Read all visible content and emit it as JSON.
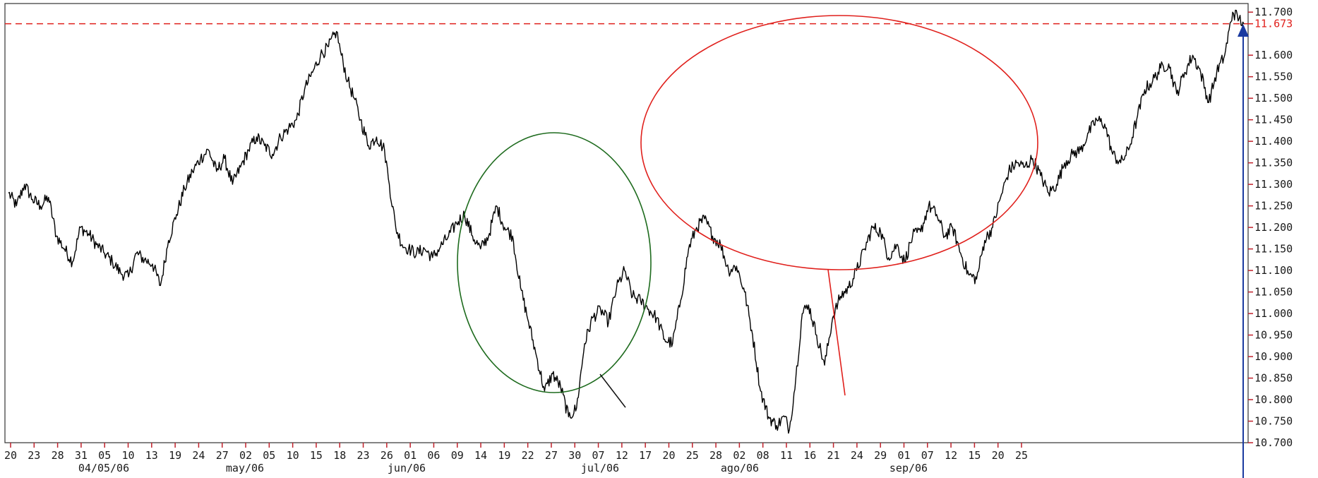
{
  "chart_data": {
    "type": "line",
    "title": "",
    "xlabel": "",
    "ylabel": "",
    "ylim": [
      10.7,
      11.72
    ],
    "y_ticks": [
      "11.700",
      "11.600",
      "11.550",
      "11.500",
      "11.450",
      "11.400",
      "11.350",
      "11.300",
      "11.250",
      "11.200",
      "11.150",
      "11.100",
      "11.050",
      "11.000",
      "10.950",
      "10.900",
      "10.850",
      "10.800",
      "10.750",
      "10.700"
    ],
    "reference_line": {
      "value": 11.673,
      "label": "11.673",
      "color": "#e0201c",
      "style": "dashed"
    },
    "day_ticks": [
      "20",
      "23",
      "28",
      "31",
      "05",
      "10",
      "13",
      "19",
      "24",
      "27",
      "02",
      "05",
      "10",
      "15",
      "18",
      "23",
      "26",
      "01",
      "06",
      "09",
      "14",
      "19",
      "22",
      "27",
      "30",
      "07",
      "12",
      "17",
      "20",
      "25",
      "28",
      "02",
      "08",
      "11",
      "16",
      "21",
      "24",
      "29",
      "01",
      "07",
      "12",
      "15",
      "20",
      "25"
    ],
    "month_labels": [
      "04/05/06",
      "may/06",
      "jun/06",
      "jul/06",
      "ago/06",
      "sep/06"
    ],
    "annotations": [
      {
        "type": "ellipse",
        "color": "#1e6b1e",
        "around": "jun/06 – jul/06 rebound"
      },
      {
        "type": "ellipse",
        "color": "#e0201c",
        "around": "jul/06 – sep/06 uptrend"
      },
      {
        "type": "up-arrow",
        "color": "#1a3aa0",
        "at": "last value 11.673"
      }
    ],
    "series": [
      {
        "color": "#000000",
        "points": [
          [
            0,
            11.28
          ],
          [
            5,
            11.25
          ],
          [
            10,
            11.3
          ],
          [
            15,
            11.265
          ],
          [
            20,
            11.25
          ],
          [
            25,
            11.27
          ],
          [
            30,
            11.18
          ],
          [
            35,
            11.15
          ],
          [
            40,
            11.12
          ],
          [
            45,
            11.2
          ],
          [
            50,
            11.185
          ],
          [
            55,
            11.16
          ],
          [
            60,
            11.14
          ],
          [
            65,
            11.12
          ],
          [
            70,
            11.095
          ],
          [
            75,
            11.085
          ],
          [
            80,
            11.14
          ],
          [
            85,
            11.125
          ],
          [
            90,
            11.115
          ],
          [
            95,
            11.065
          ],
          [
            100,
            11.17
          ],
          [
            105,
            11.23
          ],
          [
            110,
            11.29
          ],
          [
            115,
            11.33
          ],
          [
            120,
            11.36
          ],
          [
            125,
            11.38
          ],
          [
            130,
            11.33
          ],
          [
            135,
            11.36
          ],
          [
            140,
            11.3
          ],
          [
            145,
            11.34
          ],
          [
            150,
            11.38
          ],
          [
            155,
            11.41
          ],
          [
            160,
            11.39
          ],
          [
            165,
            11.37
          ],
          [
            170,
            11.41
          ],
          [
            175,
            11.43
          ],
          [
            180,
            11.45
          ],
          [
            185,
            11.52
          ],
          [
            190,
            11.56
          ],
          [
            195,
            11.6
          ],
          [
            200,
            11.62
          ],
          [
            205,
            11.655
          ],
          [
            208,
            11.6
          ],
          [
            212,
            11.54
          ],
          [
            216,
            11.5
          ],
          [
            220,
            11.45
          ],
          [
            225,
            11.39
          ],
          [
            230,
            11.41
          ],
          [
            235,
            11.38
          ],
          [
            238,
            11.3
          ],
          [
            242,
            11.2
          ],
          [
            246,
            11.16
          ],
          [
            250,
            11.15
          ],
          [
            255,
            11.14
          ],
          [
            260,
            11.15
          ],
          [
            265,
            11.13
          ],
          [
            270,
            11.155
          ],
          [
            275,
            11.18
          ],
          [
            280,
            11.21
          ],
          [
            285,
            11.23
          ],
          [
            290,
            11.18
          ],
          [
            295,
            11.15
          ],
          [
            300,
            11.18
          ],
          [
            305,
            11.25
          ],
          [
            310,
            11.2
          ],
          [
            315,
            11.18
          ],
          [
            320,
            11.06
          ],
          [
            325,
            10.98
          ],
          [
            330,
            10.9
          ],
          [
            335,
            10.82
          ],
          [
            340,
            10.86
          ],
          [
            345,
            10.83
          ],
          [
            350,
            10.76
          ],
          [
            355,
            10.78
          ],
          [
            360,
            10.93
          ],
          [
            365,
            10.99
          ],
          [
            370,
            11.01
          ],
          [
            375,
            10.98
          ],
          [
            380,
            11.06
          ],
          [
            385,
            11.1
          ],
          [
            390,
            11.04
          ],
          [
            395,
            11.03
          ],
          [
            400,
            11.01
          ],
          [
            405,
            10.99
          ],
          [
            410,
            10.94
          ],
          [
            415,
            10.93
          ],
          [
            420,
            11.03
          ],
          [
            425,
            11.15
          ],
          [
            430,
            11.2
          ],
          [
            435,
            11.22
          ],
          [
            440,
            11.18
          ],
          [
            445,
            11.16
          ],
          [
            450,
            11.1
          ],
          [
            455,
            11.11
          ],
          [
            460,
            11.05
          ],
          [
            465,
            10.95
          ],
          [
            470,
            10.82
          ],
          [
            475,
            10.76
          ],
          [
            480,
            10.74
          ],
          [
            485,
            10.76
          ],
          [
            488,
            10.73
          ],
          [
            492,
            10.85
          ],
          [
            496,
            11.0
          ],
          [
            500,
            11.02
          ],
          [
            505,
            10.95
          ],
          [
            510,
            10.88
          ],
          [
            515,
            10.99
          ],
          [
            520,
            11.04
          ],
          [
            525,
            11.06
          ],
          [
            530,
            11.1
          ],
          [
            535,
            11.15
          ],
          [
            540,
            11.2
          ],
          [
            545,
            11.19
          ],
          [
            550,
            11.13
          ],
          [
            555,
            11.16
          ],
          [
            560,
            11.12
          ],
          [
            565,
            11.18
          ],
          [
            570,
            11.19
          ],
          [
            575,
            11.25
          ],
          [
            580,
            11.23
          ],
          [
            585,
            11.18
          ],
          [
            590,
            11.2
          ],
          [
            595,
            11.14
          ],
          [
            600,
            11.09
          ],
          [
            605,
            11.08
          ],
          [
            610,
            11.17
          ],
          [
            615,
            11.2
          ],
          [
            620,
            11.27
          ],
          [
            625,
            11.33
          ],
          [
            630,
            11.35
          ],
          [
            635,
            11.34
          ],
          [
            640,
            11.36
          ],
          [
            645,
            11.32
          ],
          [
            650,
            11.28
          ],
          [
            655,
            11.3
          ],
          [
            660,
            11.35
          ],
          [
            665,
            11.37
          ],
          [
            670,
            11.38
          ],
          [
            675,
            11.42
          ],
          [
            680,
            11.45
          ],
          [
            685,
            11.44
          ],
          [
            690,
            11.37
          ],
          [
            695,
            11.35
          ],
          [
            700,
            11.38
          ],
          [
            705,
            11.45
          ],
          [
            710,
            11.52
          ],
          [
            715,
            11.54
          ],
          [
            720,
            11.57
          ],
          [
            725,
            11.58
          ],
          [
            730,
            11.51
          ],
          [
            735,
            11.56
          ],
          [
            740,
            11.6
          ],
          [
            745,
            11.56
          ],
          [
            750,
            11.49
          ],
          [
            755,
            11.56
          ],
          [
            760,
            11.6
          ],
          [
            765,
            11.7
          ],
          [
            769,
            11.685
          ],
          [
            772,
            11.673
          ]
        ]
      }
    ]
  }
}
